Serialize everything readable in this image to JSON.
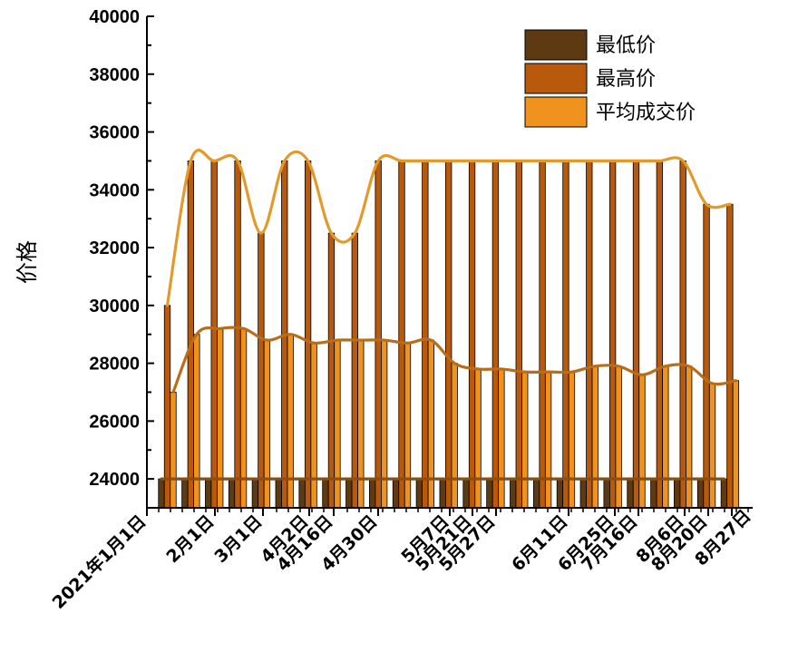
{
  "chart_data": {
    "type": "bar",
    "title": "",
    "xlabel": "",
    "ylabel": "价格",
    "ylim": [
      23000,
      40000
    ],
    "yticks": [
      24000,
      26000,
      28000,
      30000,
      32000,
      34000,
      36000,
      38000,
      40000
    ],
    "xtick_labels": [
      "2021年1月1日",
      "2月1日",
      "3月1日",
      "4月2日",
      "4月16日",
      "4月30日",
      "5月7日",
      "5月21日",
      "5月27日",
      "6月11日",
      "6月25日",
      "7月16日",
      "8月6日",
      "8月20日",
      "8月27日"
    ],
    "legend": {
      "position": "top-right",
      "entries": [
        "最低价",
        "最高价",
        "平均成交价"
      ]
    },
    "colors": {
      "最低价": "#5e3a12",
      "最高价": "#b8590c",
      "平均成交价": "#f0921e"
    },
    "smoothed_lines": [
      {
        "series": "最高价",
        "color": "#e39a2a"
      },
      {
        "series": "平均成交价",
        "color": "#b86d1a"
      },
      {
        "series": "最低价",
        "color": "#8a4e10"
      }
    ],
    "series": [
      {
        "name": "最低价",
        "values": [
          24000,
          24000,
          24000,
          24000,
          24000,
          24000,
          24000,
          24000,
          24000,
          24000,
          24000,
          24000,
          24000,
          24000,
          24000,
          24000,
          24000,
          24000,
          24000,
          24000,
          24000,
          24000,
          24000,
          24000,
          24000
        ]
      },
      {
        "name": "最高价",
        "values": [
          30000,
          35000,
          35000,
          35000,
          32500,
          35000,
          35000,
          32500,
          32500,
          35000,
          35000,
          35000,
          35000,
          35000,
          35000,
          35000,
          35000,
          35000,
          35000,
          35000,
          35000,
          35000,
          35000,
          33500,
          33500
        ]
      },
      {
        "name": "平均成交价",
        "values": [
          27000,
          29000,
          29200,
          29200,
          28800,
          29000,
          28700,
          28800,
          28800,
          28800,
          28700,
          28800,
          28000,
          27800,
          27800,
          27700,
          27700,
          27700,
          27900,
          27900,
          27600,
          27900,
          27900,
          27300,
          27400
        ]
      }
    ]
  }
}
